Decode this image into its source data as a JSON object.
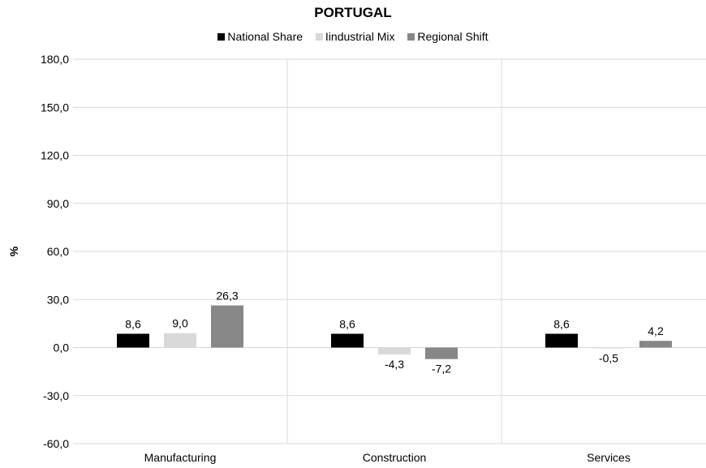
{
  "chart_data": {
    "type": "bar",
    "title": "PORTUGAL",
    "ylabel": "%",
    "xlabel": "",
    "categories": [
      "Manufacturing",
      "Construction",
      "Services"
    ],
    "ylim": [
      -60,
      180
    ],
    "yticks": [
      "180,0",
      "150,0",
      "120,0",
      "90,0",
      "60,0",
      "30,0",
      "0,0",
      "-30,0",
      "-60,0"
    ],
    "ytick_values": [
      180,
      150,
      120,
      90,
      60,
      30,
      0,
      -30,
      -60
    ],
    "legend_position": "top-center",
    "series": [
      {
        "name": "National Share",
        "color": "#000000",
        "values": [
          8.6,
          8.6,
          8.6
        ],
        "labels": [
          "8,6",
          "8,6",
          "8,6"
        ]
      },
      {
        "name": "Iindustrial Mix",
        "color": "#d9d9d9",
        "values": [
          9.0,
          -4.3,
          -0.5
        ],
        "labels": [
          "9,0",
          "-4,3",
          "-0,5"
        ]
      },
      {
        "name": "Regional Shift",
        "color": "#878787",
        "values": [
          26.3,
          -7.2,
          4.2
        ],
        "labels": [
          "26,3",
          "-7,2",
          "4,2"
        ]
      }
    ]
  }
}
